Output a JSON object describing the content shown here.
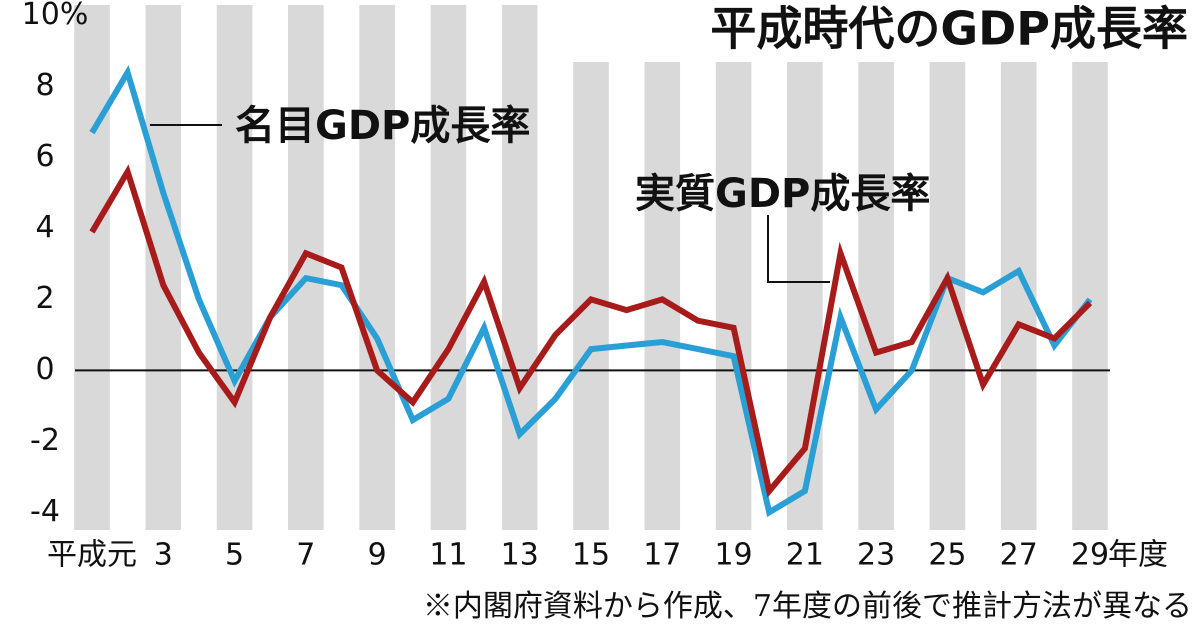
{
  "chart_data": {
    "type": "line",
    "title": "平成時代のGDP成長率",
    "note": "※内閣府資料から作成、7年度の前後で推計方法が異なる",
    "x_unit": "年度",
    "categories": [
      "平成元",
      null,
      "3",
      null,
      "5",
      null,
      "7",
      null,
      "9",
      null,
      "11",
      null,
      "13",
      null,
      "15",
      null,
      "17",
      null,
      "19",
      null,
      "21",
      null,
      "23",
      null,
      "25",
      null,
      "27",
      null,
      "29"
    ],
    "series": [
      {
        "name": "名目GDP成長率",
        "color": "#2a9fd6",
        "values": [
          6.7,
          8.4,
          5.0,
          2.0,
          -0.3,
          1.5,
          2.6,
          2.4,
          0.9,
          -1.4,
          -0.8,
          1.2,
          -1.8,
          -0.8,
          0.6,
          0.7,
          0.8,
          0.6,
          0.4,
          -4.0,
          -3.4,
          1.5,
          -1.1,
          0.0,
          2.6,
          2.2,
          2.8,
          0.7,
          2.0
        ]
      },
      {
        "name": "実質GDP成長率",
        "color": "#a81b1b",
        "values": [
          3.9,
          5.6,
          2.4,
          0.5,
          -0.9,
          1.5,
          3.3,
          2.9,
          0.0,
          -0.9,
          0.6,
          2.5,
          -0.5,
          1.0,
          2.0,
          1.7,
          2.0,
          1.4,
          1.2,
          -3.4,
          -2.2,
          3.3,
          0.5,
          0.8,
          2.6,
          -0.4,
          1.3,
          0.9,
          1.9
        ]
      }
    ],
    "ylim": [
      -4.5,
      10.3
    ],
    "yticks": [
      {
        "value": 10,
        "label": "10%"
      },
      8,
      6,
      4,
      2,
      0,
      -2,
      -4
    ]
  }
}
